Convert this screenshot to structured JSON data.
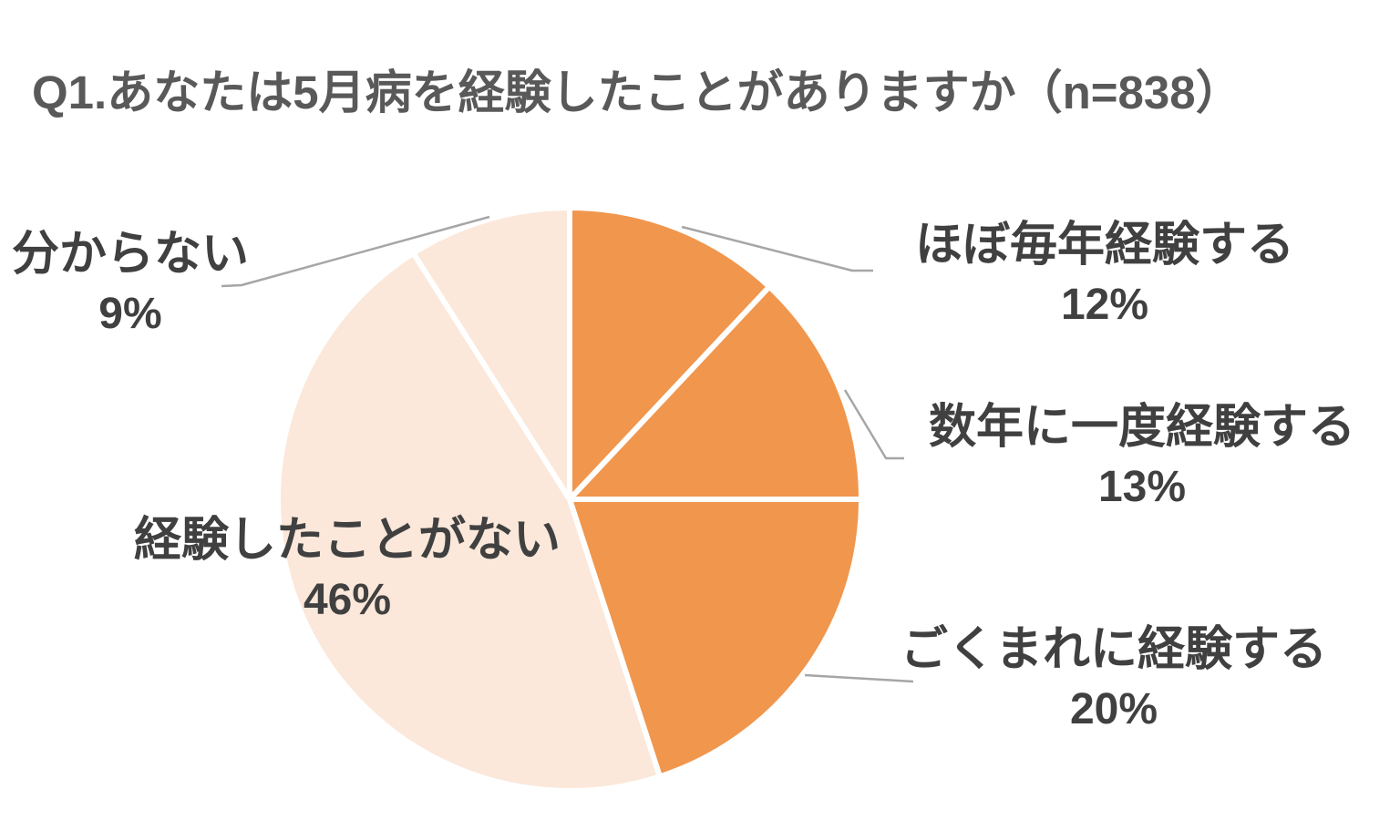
{
  "chart_data": {
    "type": "pie",
    "title": "Q1.あなたは5月病を経験したことがありますか（n=838）",
    "sample_size_label": "n=838",
    "unit": "%",
    "direction": "clockwise",
    "start_angle_deg": 0,
    "legend_position": "outside-callouts",
    "slices": [
      {
        "label": "ほぼ毎年経験する",
        "value": 12,
        "pct_label": "12%",
        "color": "#F0964D"
      },
      {
        "label": "数年に一度経験する",
        "value": 13,
        "pct_label": "13%",
        "color": "#F0964D"
      },
      {
        "label": "ごくまれに経験する",
        "value": 20,
        "pct_label": "20%",
        "color": "#F0964D"
      },
      {
        "label": "経験したことがない",
        "value": 46,
        "pct_label": "46%",
        "color": "#FBE8DA"
      },
      {
        "label": "分からない",
        "value": 9,
        "pct_label": "9%",
        "color": "#FBE8DA"
      }
    ],
    "colors": {
      "accent_orange": "#F0964D",
      "light_peach": "#FBE8DA",
      "title_text": "#595959",
      "label_text": "#404040",
      "leader_line": "#A6A6A6",
      "slice_border": "#FFFFFF",
      "background": "#FFFFFF"
    }
  }
}
